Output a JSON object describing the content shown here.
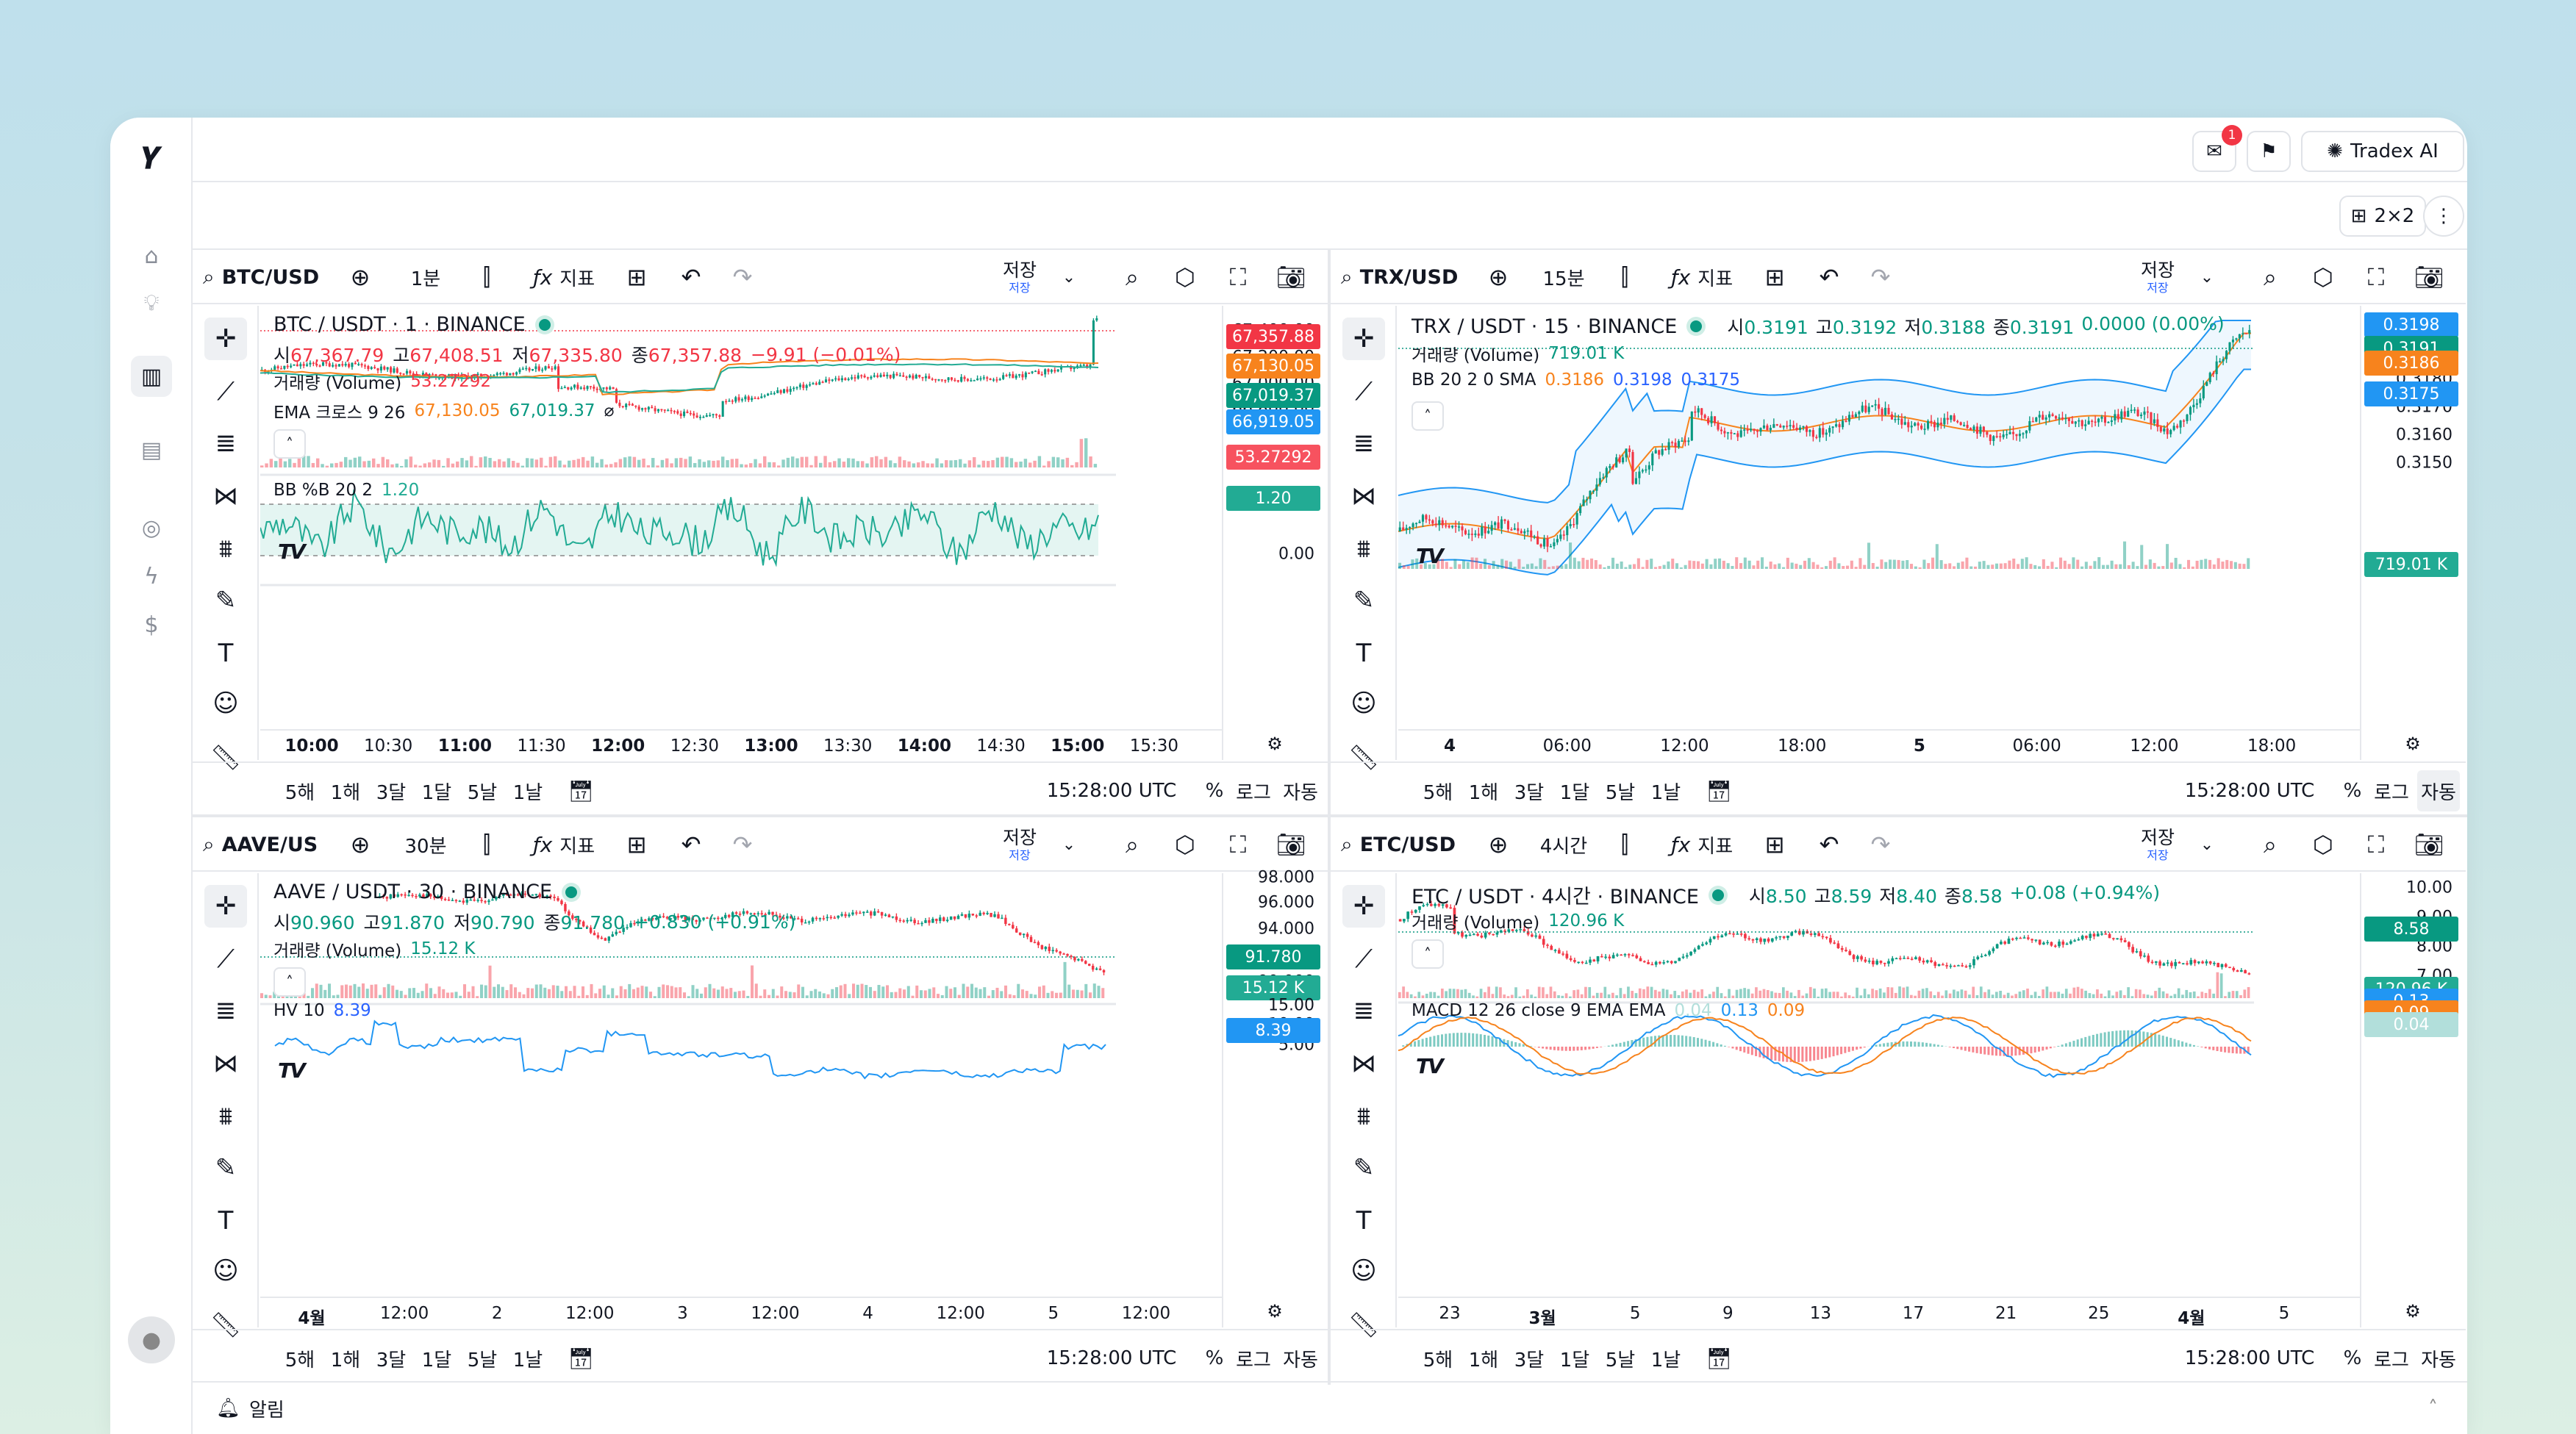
{
  "app": {
    "logo": "𝒀",
    "topbar": {
      "notif_count": "1",
      "ai_label": "Tradex AI"
    },
    "layout_label": "2×2",
    "alerts_label": "알림"
  },
  "common": {
    "indicators_label": "지표",
    "save_label": "저장",
    "save_sub": "저장",
    "ranges": [
      "5해",
      "1해",
      "3달",
      "1달",
      "5날",
      "1날"
    ],
    "time_utc": "15:28:00 UTC",
    "pct": "%",
    "log": "로그",
    "auto": "자동"
  },
  "panels": [
    {
      "symbol": "BTC/USD",
      "interval": "1분",
      "title": "BTC / USDT · 1 · BINANCE",
      "ohlc": {
        "o_label": "시",
        "o": "67,367.79",
        "h_label": "고",
        "h": "67,408.51",
        "l_label": "저",
        "l": "67,335.80",
        "c_label": "종",
        "c": "67,357.88",
        "chg": "−9.91 (−0.01%)",
        "dir": "down"
      },
      "volume_label": "거래량 (Volume)",
      "volume_value": "53.27292",
      "ind2_label": "EMA 크로스 9 26",
      "ind2_vals": [
        "67,130.05",
        "67,019.37"
      ],
      "ind2_extra": "⌀",
      "osc_label": "BB %B 20 2",
      "osc_value": "1.20",
      "price_ticks": [
        "67,400.00",
        "67,200.00",
        "67,000.00",
        "66,800.00"
      ],
      "price_tags": [
        {
          "value": "67,357.88",
          "color": "#f23645"
        },
        {
          "value": "67,130.05",
          "color": "#f7831d"
        },
        {
          "value": "67,019.37",
          "color": "#089981"
        },
        {
          "value": "66,919.05",
          "color": "#2196f3"
        },
        {
          "value": "53.27292",
          "color": "#f7525f"
        }
      ],
      "osc_ticks": [
        "1.00",
        "0.00"
      ],
      "osc_tags": [
        {
          "value": "1.20",
          "color": "#22ab94"
        }
      ],
      "time_labels": [
        {
          "t": "10:00",
          "b": true
        },
        {
          "t": "10:30",
          "b": false
        },
        {
          "t": "11:00",
          "b": true
        },
        {
          "t": "11:30",
          "b": false
        },
        {
          "t": "12:00",
          "b": true
        },
        {
          "t": "12:30",
          "b": false
        },
        {
          "t": "13:00",
          "b": true
        },
        {
          "t": "13:30",
          "b": false
        },
        {
          "t": "14:00",
          "b": true
        },
        {
          "t": "14:30",
          "b": false
        },
        {
          "t": "15:00",
          "b": true
        },
        {
          "t": "15:30",
          "b": false
        }
      ]
    },
    {
      "symbol": "TRX/USD",
      "interval": "15분",
      "title": "TRX / USDT · 15 · BINANCE",
      "ohlc": {
        "o_label": "시",
        "o": "0.3191",
        "h_label": "고",
        "h": "0.3192",
        "l_label": "저",
        "l": "0.3188",
        "c_label": "종",
        "c": "0.3191",
        "chg": "0.0000 (0.00%)",
        "dir": "up"
      },
      "volume_label": "거래량 (Volume)",
      "volume_value": "719.01 K",
      "ind2_label": "BB 20 2 0 SMA",
      "ind2_vals": [
        "0.3186",
        "0.3198",
        "0.3175"
      ],
      "price_ticks": [
        "0.3200",
        "0.3190",
        "0.3180",
        "0.3170",
        "0.3160",
        "0.3150"
      ],
      "price_tags": [
        {
          "value": "0.3198",
          "color": "#2196f3"
        },
        {
          "value": "0.3191",
          "color": "#089981"
        },
        {
          "value": "0.3186",
          "color": "#f7831d"
        },
        {
          "value": "0.3175",
          "color": "#2196f3"
        },
        {
          "value": "719.01 K",
          "color": "#22ab94"
        }
      ],
      "time_labels": [
        {
          "t": "4",
          "b": true
        },
        {
          "t": "06:00",
          "b": false
        },
        {
          "t": "12:00",
          "b": false
        },
        {
          "t": "18:00",
          "b": false
        },
        {
          "t": "5",
          "b": true
        },
        {
          "t": "06:00",
          "b": false
        },
        {
          "t": "12:00",
          "b": false
        },
        {
          "t": "18:00",
          "b": false
        }
      ]
    },
    {
      "symbol": "AAVE/US",
      "interval": "30분",
      "title": "AAVE / USDT · 30 · BINANCE",
      "ohlc": {
        "o_label": "시",
        "o": "90.960",
        "h_label": "고",
        "h": "91.870",
        "l_label": "저",
        "l": "90.790",
        "c_label": "종",
        "c": "91.780",
        "chg": "+0.830 (+0.91%)",
        "dir": "up"
      },
      "volume_label": "거래량 (Volume)",
      "volume_value": "15.12 K",
      "osc_label": "HV 10",
      "osc_value": "8.39",
      "price_ticks": [
        "98.000",
        "96.000",
        "94.000",
        "90.000"
      ],
      "price_tags": [
        {
          "value": "91.780",
          "color": "#089981"
        },
        {
          "value": "15.12 K",
          "color": "#22ab94"
        }
      ],
      "osc_ticks": [
        "15.00",
        "10.00",
        "5.00"
      ],
      "osc_tags": [
        {
          "value": "8.39",
          "color": "#2196f3"
        }
      ],
      "time_labels": [
        {
          "t": "4월",
          "b": true
        },
        {
          "t": "12:00",
          "b": false
        },
        {
          "t": "2",
          "b": false
        },
        {
          "t": "12:00",
          "b": false
        },
        {
          "t": "3",
          "b": false
        },
        {
          "t": "12:00",
          "b": false
        },
        {
          "t": "4",
          "b": false
        },
        {
          "t": "12:00",
          "b": false
        },
        {
          "t": "5",
          "b": false
        },
        {
          "t": "12:00",
          "b": false
        }
      ]
    },
    {
      "symbol": "ETC/USD",
      "interval": "4시간",
      "title": "ETC / USDT · 4시간 · BINANCE",
      "ohlc": {
        "o_label": "시",
        "o": "8.50",
        "h_label": "고",
        "h": "8.59",
        "l_label": "저",
        "l": "8.40",
        "c_label": "종",
        "c": "8.58",
        "chg": "+0.08 (+0.94%)",
        "dir": "up"
      },
      "volume_label": "거래량 (Volume)",
      "volume_value": "120.96 K",
      "osc_label": "MACD 12 26 close 9 EMA EMA",
      "osc_vals": [
        "0.04",
        "0.13",
        "0.09"
      ],
      "price_ticks": [
        "10.00",
        "9.00",
        "8.00",
        "7.00"
      ],
      "price_tags": [
        {
          "value": "8.58",
          "color": "#089981"
        },
        {
          "value": "120.96 K",
          "color": "#22ab94"
        }
      ],
      "osc_ticks": [
        "0.00"
      ],
      "osc_tags": [
        {
          "value": "0.13",
          "color": "#2196f3"
        },
        {
          "value": "0.09",
          "color": "#f7831d"
        },
        {
          "value": "0.04",
          "color": "#b2dfdb"
        }
      ],
      "time_labels": [
        {
          "t": "23",
          "b": false
        },
        {
          "t": "3월",
          "b": true
        },
        {
          "t": "5",
          "b": false
        },
        {
          "t": "9",
          "b": false
        },
        {
          "t": "13",
          "b": false
        },
        {
          "t": "17",
          "b": false
        },
        {
          "t": "21",
          "b": false
        },
        {
          "t": "25",
          "b": false
        },
        {
          "t": "4월",
          "b": true
        },
        {
          "t": "5",
          "b": false
        }
      ]
    }
  ]
}
